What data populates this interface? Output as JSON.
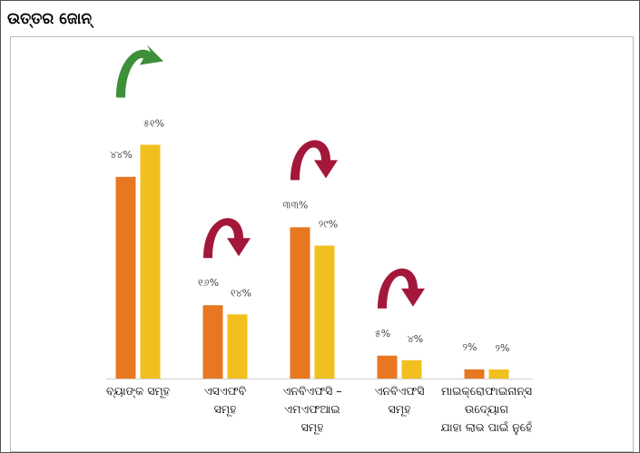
{
  "title": "ଉତ୍ତର ଜୋନ୍",
  "colors": {
    "series1": "#E87722",
    "series2": "#F2C01E",
    "arrow_up": "#3D8F3A",
    "arrow_down": "#A3183A"
  },
  "chart_data": {
    "type": "bar",
    "title": "",
    "xlabel": "",
    "ylabel": "",
    "ylim": [
      0,
      50
    ],
    "grid": false,
    "legend": "none",
    "categories": [
      [
        "ବ୍ୟାଙ୍କ ସମୂହ"
      ],
      [
        "ଏସଏଫବି",
        "ସମୂହ"
      ],
      [
        "ଏନବିଏଫସି – ଏମଏଫଆଇ",
        "ସମୂହ"
      ],
      [
        "ଏନବିଏଫସି",
        "ସମୂହ"
      ],
      [
        "ମାଇକ୍ରୋଫାଇନାନ୍ସ ଉଦ୍ୟୋଗ",
        "ଯାହା ଲାଭ ପାଇଁ ନୁହେଁ"
      ]
    ],
    "series": [
      {
        "values": [
          44,
          16,
          33,
          5,
          2
        ],
        "labels": [
          "୪୪%",
          "୧୬%",
          "୩୩%",
          "୫%",
          "୨%"
        ]
      },
      {
        "values": [
          51,
          14,
          29,
          4,
          2
        ],
        "labels": [
          "୫୧%",
          "୧୪%",
          "୨୯%",
          "୪%",
          "୨%"
        ]
      }
    ],
    "trend_arrows": [
      "up",
      "down",
      "down",
      "down",
      "none"
    ]
  }
}
